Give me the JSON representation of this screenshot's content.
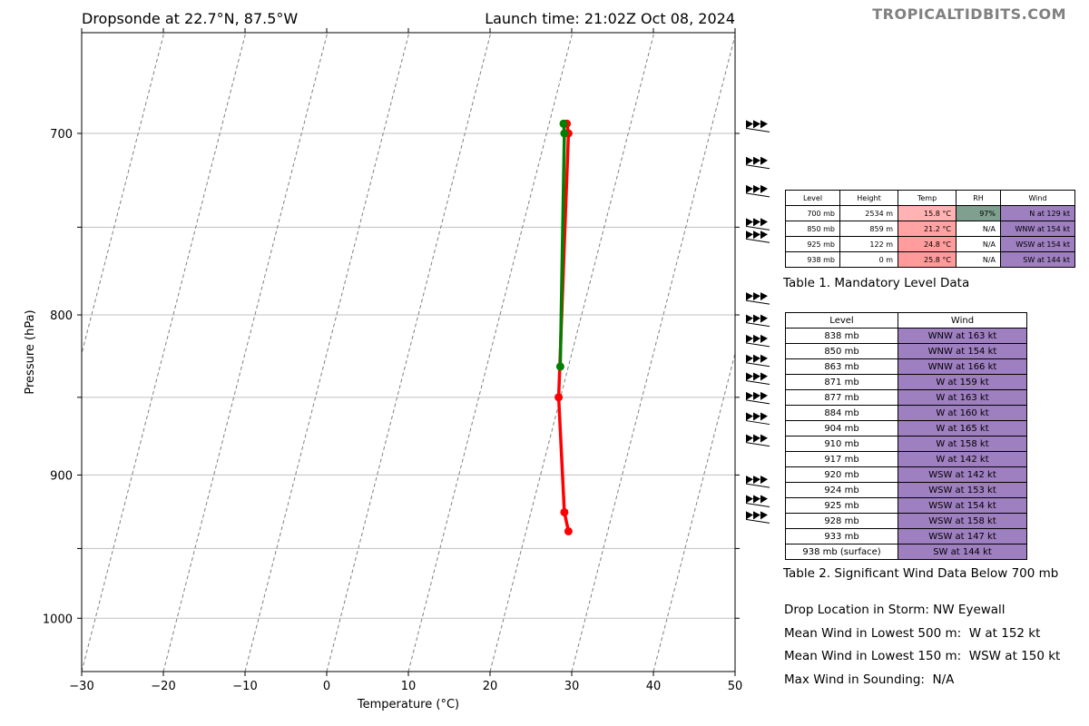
{
  "header": {
    "left_title": "Dropsonde at 22.7°N, 87.5°W",
    "right_title": "Launch time: 21:02Z Oct 08, 2024",
    "site": "TROPICALTIDBITS.COM"
  },
  "chart_data": {
    "type": "line",
    "xlabel": "Temperature (°C)",
    "ylabel": "Pressure (hPa)",
    "xlim": [
      -30,
      50
    ],
    "ylim": [
      1040,
      650
    ],
    "y_scale": "log",
    "x_ticks": [
      "−30",
      "−20",
      "−10",
      "0",
      "10",
      "20",
      "30",
      "40",
      "50"
    ],
    "x_tick_values": [
      -30,
      -20,
      -10,
      0,
      10,
      20,
      30,
      40,
      50
    ],
    "y_ticks": [
      "700",
      "800",
      "900",
      "1000"
    ],
    "y_tick_values": [
      700,
      800,
      900,
      1000
    ],
    "y_grid_values": [
      700,
      750,
      800,
      850,
      900,
      950,
      1000
    ],
    "grid": true,
    "skew_lines": "dashed gray",
    "series": [
      {
        "color": "#ff0000",
        "points": [
          [
            29.4,
            695
          ],
          [
            29.6,
            700
          ],
          [
            28.4,
            850
          ],
          [
            29.1,
            925
          ],
          [
            29.6,
            938
          ]
        ]
      },
      {
        "color": "#007f00",
        "points": [
          [
            29.0,
            695
          ],
          [
            29.1,
            700
          ],
          [
            28.6,
            831
          ]
        ]
      }
    ],
    "wind_barbs_pressure": [
      696,
      715,
      730,
      748,
      755,
      790,
      803,
      815,
      827,
      838,
      850,
      863,
      877,
      904,
      917,
      928
    ]
  },
  "table1": {
    "headers": [
      "Level",
      "Height",
      "Temp",
      "RH",
      "Wind"
    ],
    "rows": [
      [
        "700 mb",
        "2534 m",
        "15.8 °C",
        "97%",
        "N at 129 kt"
      ],
      [
        "850 mb",
        "859 m",
        "21.2 °C",
        "N/A",
        "WNW at 154 kt"
      ],
      [
        "925 mb",
        "122 m",
        "24.8 °C",
        "N/A",
        "WSW at 154 kt"
      ],
      [
        "938 mb",
        "0 m",
        "25.8 °C",
        "N/A",
        "SW at 144 kt"
      ]
    ],
    "temp_colors": [
      "#ffb3b3",
      "#ffa3a3",
      "#ff9c9c",
      "#ff9a9a"
    ],
    "rh_colors": [
      "#7f9f8f",
      "#ffffff",
      "#ffffff",
      "#ffffff"
    ],
    "wind_color": "#9e7fbf",
    "caption": "Table 1. Mandatory Level Data"
  },
  "table2": {
    "headers": [
      "Level",
      "Wind"
    ],
    "rows": [
      [
        "838 mb",
        "WNW at 163 kt"
      ],
      [
        "850 mb",
        "WNW at 154 kt"
      ],
      [
        "863 mb",
        "WNW at 166 kt"
      ],
      [
        "871 mb",
        "W at 159 kt"
      ],
      [
        "877 mb",
        "W at 163 kt"
      ],
      [
        "884 mb",
        "W at 160 kt"
      ],
      [
        "904 mb",
        "W at 165 kt"
      ],
      [
        "910 mb",
        "W at 158 kt"
      ],
      [
        "917 mb",
        "W at 142 kt"
      ],
      [
        "920 mb",
        "WSW at 142 kt"
      ],
      [
        "924 mb",
        "WSW at 153 kt"
      ],
      [
        "925 mb",
        "WSW at 154 kt"
      ],
      [
        "928 mb",
        "WSW at 158 kt"
      ],
      [
        "933 mb",
        "WSW at 147 kt"
      ],
      [
        "938 mb (surface)",
        "SW at 144 kt"
      ]
    ],
    "wind_color": "#9e7fbf",
    "caption": "Table 2. Significant Wind Data Below 700 mb"
  },
  "info": {
    "drop_location": "Drop Location in Storm: NW Eyewall",
    "mean_500": "Mean Wind in Lowest 500 m:  W at 152 kt",
    "mean_150": "Mean Wind in Lowest 150 m:  WSW at 150 kt",
    "max_wind": "Max Wind in Sounding:  N/A"
  }
}
